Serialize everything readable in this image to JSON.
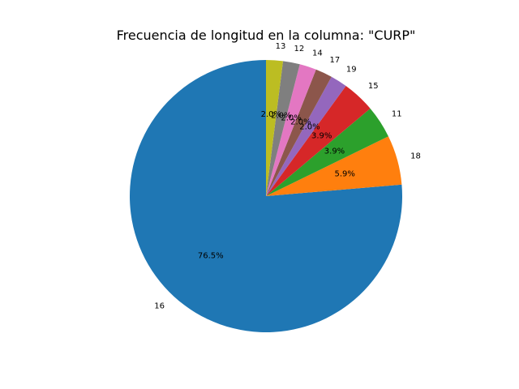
{
  "chart_data": {
    "type": "pie",
    "title": "Frecuencia de longitud en la columna: \"CURP\"",
    "slices": [
      {
        "label": "16",
        "value": 76.5,
        "pct_label": "76.5%",
        "color": "#1f77b4"
      },
      {
        "label": "18",
        "value": 5.9,
        "pct_label": "5.9%",
        "color": "#ff7f0e"
      },
      {
        "label": "11",
        "value": 3.9,
        "pct_label": "3.9%",
        "color": "#2ca02c"
      },
      {
        "label": "15",
        "value": 3.9,
        "pct_label": "3.9%",
        "color": "#d62728"
      },
      {
        "label": "19",
        "value": 2.0,
        "pct_label": "2.0%",
        "color": "#9467bd"
      },
      {
        "label": "17",
        "value": 2.0,
        "pct_label": "2.0%",
        "color": "#8c564b"
      },
      {
        "label": "14",
        "value": 2.0,
        "pct_label": "2.0%",
        "color": "#e377c2"
      },
      {
        "label": "12",
        "value": 2.0,
        "pct_label": "2.0%",
        "color": "#7f7f7f"
      },
      {
        "label": "13",
        "value": 2.0,
        "pct_label": "2.0%",
        "color": "#bcbd22"
      }
    ],
    "start_angle_deg": 90,
    "direction": "counterclockwise",
    "legend": "none"
  }
}
